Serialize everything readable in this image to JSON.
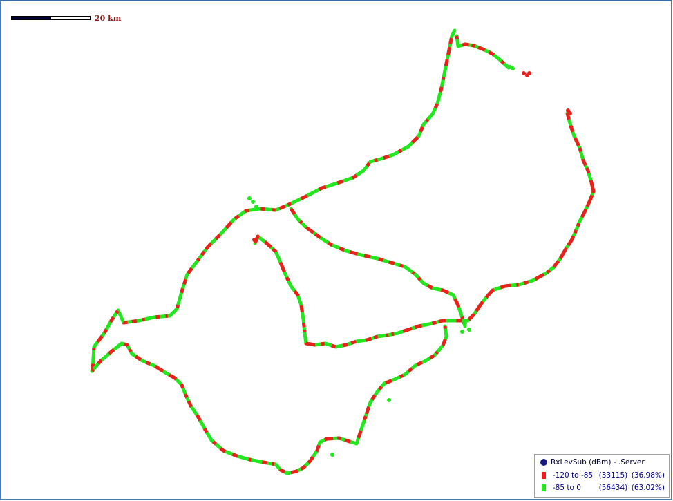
{
  "scale": {
    "label": "20 km"
  },
  "legend": {
    "title": "RxLevSub (dBm) - .Server",
    "items": [
      {
        "range": "-120 to -85",
        "count": "(33115)",
        "percent": "(36.98%)",
        "color": "#e8211c"
      },
      {
        "range": "-85 to 0",
        "count": "(56434)",
        "percent": "(63.02%)",
        "color": "#22e61e"
      }
    ]
  },
  "colors": {
    "weak": "#e8211c",
    "strong": "#22e61e",
    "frame": "#4a7ab8"
  },
  "icons": [
    "legend-dot-icon"
  ]
}
